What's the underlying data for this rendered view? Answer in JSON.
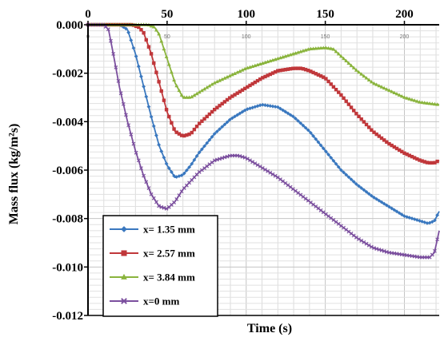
{
  "chart_data": {
    "type": "line",
    "xlabel": "Time (s)",
    "ylabel": "Mass flux (kg/m²s)",
    "xlim": [
      0,
      222
    ],
    "ylim": [
      -0.012,
      0
    ],
    "x_ticks": [
      "0",
      "50",
      "100",
      "150",
      "200"
    ],
    "y_ticks": [
      "0.000",
      "-0.002",
      "-0.004",
      "-0.006",
      "-0.008",
      "-0.010",
      "-0.012"
    ],
    "x_axis_position": "top",
    "grid": true,
    "legend_position": "bottom-left",
    "series": [
      {
        "name": "x= 1.35 mm",
        "color": "#3a78bf",
        "marker": "diamond",
        "points": [
          [
            0,
            0
          ],
          [
            15,
            0
          ],
          [
            20,
            0
          ],
          [
            25,
            -0.0002
          ],
          [
            30,
            -0.0012
          ],
          [
            35,
            -0.0025
          ],
          [
            40,
            -0.0038
          ],
          [
            45,
            -0.005
          ],
          [
            50,
            -0.0058
          ],
          [
            55,
            -0.0063
          ],
          [
            60,
            -0.0062
          ],
          [
            65,
            -0.0058
          ],
          [
            70,
            -0.0053
          ],
          [
            80,
            -0.0045
          ],
          [
            90,
            -0.0039
          ],
          [
            100,
            -0.0035
          ],
          [
            110,
            -0.0033
          ],
          [
            120,
            -0.0034
          ],
          [
            130,
            -0.0038
          ],
          [
            140,
            -0.0044
          ],
          [
            150,
            -0.0052
          ],
          [
            160,
            -0.006
          ],
          [
            170,
            -0.0066
          ],
          [
            180,
            -0.0071
          ],
          [
            190,
            -0.0075
          ],
          [
            200,
            -0.0079
          ],
          [
            210,
            -0.0081
          ],
          [
            215,
            -0.0082
          ],
          [
            219,
            -0.0081
          ],
          [
            222,
            -0.0077
          ]
        ]
      },
      {
        "name": "x= 2.57 mm",
        "color": "#c0373a",
        "marker": "square",
        "points": [
          [
            0,
            0
          ],
          [
            28,
            0
          ],
          [
            32,
            -0.0001
          ],
          [
            35,
            -0.0003
          ],
          [
            40,
            -0.0012
          ],
          [
            45,
            -0.0024
          ],
          [
            50,
            -0.0036
          ],
          [
            55,
            -0.0044
          ],
          [
            60,
            -0.0046
          ],
          [
            65,
            -0.0045
          ],
          [
            70,
            -0.0041
          ],
          [
            80,
            -0.0035
          ],
          [
            90,
            -0.003
          ],
          [
            100,
            -0.0026
          ],
          [
            110,
            -0.0022
          ],
          [
            120,
            -0.0019
          ],
          [
            130,
            -0.0018
          ],
          [
            135,
            -0.0018
          ],
          [
            140,
            -0.0019
          ],
          [
            150,
            -0.0022
          ],
          [
            160,
            -0.0029
          ],
          [
            170,
            -0.0037
          ],
          [
            180,
            -0.0044
          ],
          [
            190,
            -0.0049
          ],
          [
            200,
            -0.0053
          ],
          [
            210,
            -0.0056
          ],
          [
            215,
            -0.0057
          ],
          [
            219,
            -0.0057
          ],
          [
            222,
            -0.0056
          ]
        ]
      },
      {
        "name": "x= 3.84 mm",
        "color": "#8ab43d",
        "marker": "triangle",
        "points": [
          [
            0,
            0
          ],
          [
            38,
            0
          ],
          [
            42,
            -0.0001
          ],
          [
            45,
            -0.0004
          ],
          [
            50,
            -0.0014
          ],
          [
            55,
            -0.0024
          ],
          [
            60,
            -0.003
          ],
          [
            65,
            -0.003
          ],
          [
            70,
            -0.0028
          ],
          [
            80,
            -0.0024
          ],
          [
            90,
            -0.0021
          ],
          [
            100,
            -0.0018
          ],
          [
            110,
            -0.0016
          ],
          [
            120,
            -0.0014
          ],
          [
            130,
            -0.0012
          ],
          [
            140,
            -0.001
          ],
          [
            150,
            -0.00095
          ],
          [
            155,
            -0.001
          ],
          [
            160,
            -0.0013
          ],
          [
            170,
            -0.0019
          ],
          [
            180,
            -0.0024
          ],
          [
            190,
            -0.0027
          ],
          [
            200,
            -0.003
          ],
          [
            210,
            -0.0032
          ],
          [
            222,
            -0.0033
          ]
        ]
      },
      {
        "name": "x=0 mm",
        "color": "#7b4f9e",
        "marker": "x",
        "points": [
          [
            0,
            0
          ],
          [
            10,
            0
          ],
          [
            13,
            -0.0002
          ],
          [
            16,
            -0.0012
          ],
          [
            20,
            -0.0026
          ],
          [
            25,
            -0.004
          ],
          [
            30,
            -0.0052
          ],
          [
            35,
            -0.0062
          ],
          [
            40,
            -0.007
          ],
          [
            45,
            -0.0075
          ],
          [
            50,
            -0.0076
          ],
          [
            55,
            -0.0073
          ],
          [
            60,
            -0.0068
          ],
          [
            70,
            -0.0061
          ],
          [
            80,
            -0.0056
          ],
          [
            90,
            -0.0054
          ],
          [
            95,
            -0.0054
          ],
          [
            100,
            -0.0055
          ],
          [
            110,
            -0.0059
          ],
          [
            120,
            -0.0063
          ],
          [
            130,
            -0.0068
          ],
          [
            140,
            -0.0073
          ],
          [
            150,
            -0.0078
          ],
          [
            160,
            -0.0083
          ],
          [
            170,
            -0.0088
          ],
          [
            180,
            -0.0092
          ],
          [
            190,
            -0.0094
          ],
          [
            200,
            -0.0095
          ],
          [
            210,
            -0.0096
          ],
          [
            216,
            -0.0096
          ],
          [
            219,
            -0.0094
          ],
          [
            222,
            -0.0085
          ]
        ]
      }
    ]
  }
}
